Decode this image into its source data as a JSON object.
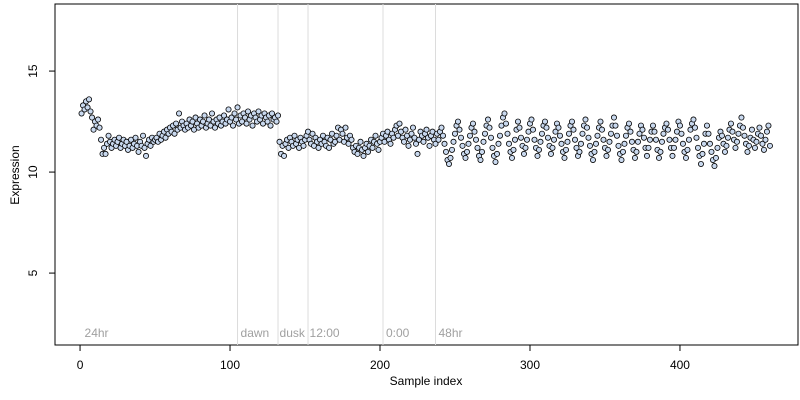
{
  "chart_data": {
    "type": "scatter",
    "xlabel": "Sample index",
    "ylabel": "Expression",
    "xlim": [
      -16.7,
      478.7
    ],
    "ylim": [
      1.44,
      18.32
    ],
    "xticks": [
      0,
      100,
      200,
      300,
      400
    ],
    "yticks": [
      5,
      10,
      15
    ],
    "vlines": [
      105,
      132,
      152,
      202,
      237
    ],
    "annotations": [
      {
        "x": 3,
        "label": "24hr"
      },
      {
        "x": 107,
        "label": "dawn"
      },
      {
        "x": 133,
        "label": "dusk"
      },
      {
        "x": 153,
        "label": "12:00"
      },
      {
        "x": 204,
        "label": "0:00"
      },
      {
        "x": 239,
        "label": "48hr"
      }
    ],
    "series": [
      {
        "color": "#c9d9ef",
        "x": [
          1,
          2,
          3,
          4,
          5,
          6,
          7,
          8,
          9,
          10,
          11,
          12,
          13,
          14,
          15,
          16,
          17,
          18,
          19,
          20,
          21,
          22,
          23,
          24,
          25,
          26,
          27,
          28,
          29,
          30,
          31,
          32,
          33,
          34,
          35,
          36,
          37,
          38,
          39,
          40,
          41,
          42,
          43,
          44,
          45,
          46,
          47,
          48,
          49,
          50,
          51,
          52,
          53,
          54,
          55,
          56,
          57,
          58,
          59,
          60,
          61,
          62,
          63,
          64,
          65,
          66,
          67,
          68,
          69,
          70,
          71,
          72,
          73,
          74,
          75,
          76,
          77,
          78,
          79,
          80,
          81,
          82,
          83,
          84,
          85,
          86,
          87,
          88,
          89,
          90,
          91,
          92,
          93,
          94,
          95,
          96,
          97,
          98,
          99,
          100,
          101,
          102,
          103,
          104,
          105,
          106,
          107,
          108,
          109,
          110,
          111,
          112,
          113,
          114,
          115,
          116,
          117,
          118,
          119,
          120,
          121,
          122,
          123,
          124,
          125,
          126,
          127,
          128,
          129,
          130,
          131,
          132,
          133,
          134,
          135,
          136,
          137,
          138,
          139,
          140,
          141,
          142,
          143,
          144,
          145,
          146,
          147,
          148,
          149,
          150,
          151,
          152,
          153,
          154,
          155,
          156,
          157,
          158,
          159,
          160,
          161,
          162,
          163,
          164,
          165,
          166,
          167,
          168,
          169,
          170,
          171,
          172,
          173,
          174,
          175,
          176,
          177,
          178,
          179,
          180,
          181,
          182,
          183,
          184,
          185,
          186,
          187,
          188,
          189,
          190,
          191,
          192,
          193,
          194,
          195,
          196,
          197,
          198,
          199,
          200,
          201,
          202,
          203,
          204,
          205,
          206,
          207,
          208,
          209,
          210,
          211,
          212,
          213,
          214,
          215,
          216,
          217,
          218,
          219,
          220,
          221,
          222,
          223,
          224,
          225,
          226,
          227,
          228,
          229,
          230,
          231,
          232,
          233,
          234,
          235,
          236,
          237,
          238,
          239,
          240,
          241,
          242,
          243,
          244,
          245,
          246,
          247,
          248,
          249,
          250,
          251,
          252,
          253,
          254,
          255,
          256,
          257,
          258,
          259,
          260,
          261,
          262,
          263,
          264,
          265,
          266,
          267,
          268,
          269,
          270,
          271,
          272,
          273,
          274,
          275,
          276,
          277,
          278,
          279,
          280,
          281,
          282,
          283,
          284,
          285,
          286,
          287,
          288,
          289,
          290,
          291,
          292,
          293,
          294,
          295,
          296,
          297,
          298,
          299,
          300,
          301,
          302,
          303,
          304,
          305,
          306,
          307,
          308,
          309,
          310,
          311,
          312,
          313,
          314,
          315,
          316,
          317,
          318,
          319,
          320,
          321,
          322,
          323,
          324,
          325,
          326,
          327,
          328,
          329,
          330,
          331,
          332,
          333,
          334,
          335,
          336,
          337,
          338,
          339,
          340,
          341,
          342,
          343,
          344,
          345,
          346,
          347,
          348,
          349,
          350,
          351,
          352,
          353,
          354,
          355,
          356,
          357,
          358,
          359,
          360,
          361,
          362,
          363,
          364,
          365,
          366,
          367,
          368,
          369,
          370,
          371,
          372,
          373,
          374,
          375,
          376,
          377,
          378,
          379,
          380,
          381,
          382,
          383,
          384,
          385,
          386,
          387,
          388,
          389,
          390,
          391,
          392,
          393,
          394,
          395,
          396,
          397,
          398,
          399,
          400,
          401,
          402,
          403,
          404,
          405,
          406,
          407,
          408,
          409,
          410,
          411,
          412,
          413,
          414,
          415,
          416,
          417,
          418,
          419,
          420,
          421,
          422,
          423,
          424,
          425,
          426,
          427,
          428,
          429,
          430,
          431,
          432,
          433,
          434,
          435,
          436,
          437,
          438,
          439,
          440,
          441,
          442,
          443,
          444,
          445,
          446,
          447,
          448,
          449,
          450,
          451,
          452,
          453,
          454,
          455,
          456,
          457,
          458,
          459,
          460
        ],
        "values": [
          12.9,
          13.3,
          13.1,
          13.5,
          13.2,
          13.6,
          13.0,
          12.7,
          12.1,
          12.5,
          12.3,
          12.6,
          12.2,
          11.6,
          10.9,
          11.2,
          10.9,
          11.4,
          11.8,
          11.5,
          11.2,
          11.4,
          11.6,
          11.3,
          11.5,
          11.7,
          11.2,
          11.4,
          11.6,
          11.3,
          11.5,
          11.1,
          11.3,
          11.6,
          11.2,
          11.4,
          11.7,
          11.3,
          11.0,
          11.5,
          11.3,
          11.8,
          11.2,
          10.8,
          11.4,
          11.6,
          11.3,
          11.7,
          11.5,
          11.6,
          11.7,
          11.5,
          11.9,
          11.6,
          11.8,
          12.0,
          11.7,
          12.1,
          11.9,
          12.2,
          12.0,
          12.3,
          11.9,
          12.4,
          12.1,
          12.9,
          12.2,
          12.5,
          12.3,
          12.1,
          12.4,
          12.2,
          12.6,
          12.3,
          12.5,
          12.1,
          12.7,
          12.4,
          12.2,
          12.6,
          12.3,
          12.5,
          12.8,
          12.2,
          12.4,
          12.6,
          12.3,
          12.9,
          12.5,
          12.2,
          12.6,
          12.4,
          12.7,
          12.3,
          12.5,
          12.8,
          12.4,
          12.6,
          13.1,
          12.5,
          12.7,
          12.3,
          12.9,
          12.6,
          13.2,
          12.4,
          12.8,
          12.5,
          12.9,
          12.7,
          12.4,
          13.0,
          12.6,
          12.8,
          12.3,
          12.9,
          12.7,
          12.5,
          13.0,
          12.6,
          12.8,
          12.4,
          12.9,
          12.7,
          12.5,
          12.8,
          12.3,
          12.9,
          12.6,
          12.7,
          12.5,
          12.8,
          11.5,
          10.9,
          11.3,
          10.8,
          11.4,
          11.6,
          11.2,
          11.7,
          11.5,
          11.3,
          11.8,
          11.4,
          11.6,
          11.2,
          11.7,
          11.5,
          11.3,
          11.6,
          11.8,
          12.0,
          11.6,
          11.4,
          11.9,
          11.3,
          11.7,
          11.5,
          11.2,
          11.6,
          11.4,
          11.8,
          11.5,
          11.3,
          11.7,
          11.2,
          11.6,
          11.9,
          11.4,
          11.5,
          11.8,
          12.2,
          11.6,
          12.1,
          11.9,
          11.5,
          12.2,
          11.7,
          11.4,
          11.8,
          11.6,
          11.2,
          11.0,
          11.3,
          10.9,
          11.2,
          11.5,
          11.1,
          10.8,
          11.2,
          11.4,
          11.0,
          11.3,
          11.6,
          11.2,
          11.5,
          11.8,
          11.4,
          11.1,
          11.5,
          11.7,
          11.9,
          11.5,
          11.8,
          12.0,
          11.6,
          11.4,
          11.9,
          11.7,
          12.1,
          12.3,
          11.8,
          12.4,
          12.0,
          11.7,
          11.5,
          12.1,
          11.8,
          11.3,
          11.6,
          11.9,
          12.2,
          11.7,
          11.4,
          10.9,
          11.6,
          12.0,
          11.8,
          11.5,
          11.9,
          12.1,
          11.7,
          11.3,
          11.8,
          12.0,
          11.6,
          11.4,
          11.9,
          11.6,
          12.0,
          12.2,
          11.8,
          11.4,
          11.0,
          10.6,
          10.4,
          10.7,
          11.1,
          11.5,
          11.9,
          12.3,
          12.5,
          12.1,
          11.7,
          11.3,
          10.9,
          10.7,
          11.0,
          11.4,
          11.8,
          12.2,
          12.4,
          12.0,
          11.6,
          11.2,
          10.8,
          10.6,
          11.0,
          11.5,
          11.9,
          12.3,
          12.6,
          12.2,
          11.7,
          11.2,
          10.8,
          10.5,
          10.9,
          11.4,
          11.8,
          12.3,
          12.7,
          12.9,
          12.4,
          11.9,
          11.4,
          11.0,
          10.7,
          11.1,
          11.6,
          12.1,
          12.5,
          12.2,
          11.7,
          11.3,
          10.9,
          11.2,
          11.6,
          12.0,
          12.4,
          12.6,
          12.1,
          11.6,
          11.2,
          10.8,
          11.1,
          11.5,
          11.9,
          12.3,
          12.5,
          12.2,
          11.7,
          11.3,
          10.9,
          11.2,
          11.6,
          12.0,
          12.4,
          12.2,
          11.8,
          11.4,
          11.0,
          10.7,
          11.1,
          11.5,
          11.9,
          12.3,
          12.5,
          12.1,
          11.6,
          11.2,
          10.8,
          11.0,
          11.4,
          11.9,
          12.3,
          12.6,
          12.2,
          11.7,
          11.3,
          10.9,
          10.6,
          11.0,
          11.4,
          11.8,
          12.2,
          12.5,
          12.1,
          11.6,
          11.2,
          10.8,
          11.1,
          11.5,
          11.9,
          12.3,
          12.7,
          12.3,
          11.8,
          11.3,
          10.9,
          10.6,
          11.0,
          11.4,
          11.8,
          12.2,
          12.4,
          12.0,
          11.5,
          11.1,
          10.7,
          11.0,
          11.5,
          11.9,
          12.3,
          12.1,
          11.7,
          11.2,
          10.8,
          11.2,
          11.6,
          12.0,
          12.3,
          12.0,
          11.6,
          11.1,
          10.7,
          11.0,
          11.5,
          11.9,
          12.2,
          12.4,
          12.1,
          11.6,
          11.2,
          10.8,
          11.2,
          11.6,
          12.0,
          12.5,
          12.3,
          11.9,
          11.4,
          11.0,
          10.7,
          11.1,
          11.6,
          12.1,
          12.4,
          12.6,
          12.2,
          11.7,
          11.2,
          10.8,
          10.4,
          10.9,
          11.4,
          11.9,
          12.3,
          11.9,
          11.4,
          11.0,
          10.6,
          10.3,
          10.7,
          11.2,
          11.7,
          12.0,
          11.8,
          11.4,
          11.0,
          11.3,
          11.7,
          12.1,
          12.4,
          12.0,
          11.6,
          11.2,
          11.5,
          11.9,
          12.3,
          12.7,
          12.2,
          11.8,
          11.4,
          11.0,
          11.3,
          11.7,
          12.1,
          11.6,
          11.2,
          11.5,
          11.9,
          12.2,
          11.8,
          11.4,
          11.1,
          11.6,
          12.0,
          12.3,
          11.3
        ]
      }
    ]
  }
}
